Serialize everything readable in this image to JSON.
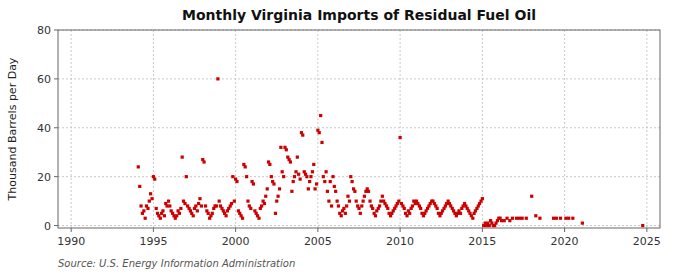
{
  "chart_data": {
    "type": "scatter",
    "title": "Monthly Virginia Imports of Residual Fuel Oil",
    "ylabel": "Thousand Barrels per Day",
    "annotations": [
      "Source: U.S. Energy Information Administration"
    ],
    "xlim": [
      1989.2,
      2025.8
    ],
    "ylim": [
      -1,
      80
    ],
    "xticks": [
      1990,
      1995,
      2000,
      2005,
      2010,
      2015,
      2020,
      2025
    ],
    "yticks": [
      0,
      20,
      40,
      60,
      80
    ],
    "color": "#cc0000",
    "marker": "square",
    "grid": true,
    "x": [
      1994.08,
      1994.17,
      1994.25,
      1994.33,
      1994.42,
      1994.5,
      1994.58,
      1994.67,
      1994.75,
      1994.83,
      1994.92,
      1995.0,
      1995.08,
      1995.17,
      1995.25,
      1995.33,
      1995.42,
      1995.5,
      1995.58,
      1995.67,
      1995.75,
      1995.83,
      1995.92,
      1996.0,
      1996.08,
      1996.17,
      1996.25,
      1996.33,
      1996.42,
      1996.5,
      1996.58,
      1996.67,
      1996.75,
      1996.83,
      1996.92,
      1997.0,
      1997.08,
      1997.17,
      1997.25,
      1997.33,
      1997.42,
      1997.5,
      1997.58,
      1997.67,
      1997.75,
      1997.83,
      1997.92,
      1998.0,
      1998.08,
      1998.17,
      1998.25,
      1998.33,
      1998.42,
      1998.5,
      1998.58,
      1998.67,
      1998.75,
      1998.83,
      1998.92,
      1999.0,
      1999.08,
      1999.17,
      1999.25,
      1999.33,
      1999.42,
      1999.5,
      1999.58,
      1999.67,
      1999.75,
      1999.83,
      1999.92,
      2000.0,
      2000.08,
      2000.17,
      2000.25,
      2000.33,
      2000.42,
      2000.5,
      2000.58,
      2000.67,
      2000.75,
      2000.83,
      2000.92,
      2001.0,
      2001.08,
      2001.17,
      2001.25,
      2001.33,
      2001.42,
      2001.5,
      2001.58,
      2001.67,
      2001.75,
      2001.83,
      2001.92,
      2002.0,
      2002.08,
      2002.17,
      2002.25,
      2002.33,
      2002.42,
      2002.5,
      2002.58,
      2002.67,
      2002.75,
      2002.83,
      2002.92,
      2003.0,
      2003.08,
      2003.17,
      2003.25,
      2003.33,
      2003.42,
      2003.5,
      2003.58,
      2003.67,
      2003.75,
      2003.83,
      2003.92,
      2004.0,
      2004.08,
      2004.17,
      2004.25,
      2004.33,
      2004.42,
      2004.5,
      2004.58,
      2004.67,
      2004.75,
      2004.83,
      2004.92,
      2005.0,
      2005.08,
      2005.17,
      2005.25,
      2005.33,
      2005.42,
      2005.5,
      2005.58,
      2005.67,
      2005.75,
      2005.83,
      2005.92,
      2006.0,
      2006.08,
      2006.17,
      2006.25,
      2006.33,
      2006.42,
      2006.5,
      2006.58,
      2006.67,
      2006.75,
      2006.83,
      2006.92,
      2007.0,
      2007.08,
      2007.17,
      2007.25,
      2007.33,
      2007.42,
      2007.5,
      2007.58,
      2007.67,
      2007.75,
      2007.83,
      2007.92,
      2008.0,
      2008.08,
      2008.17,
      2008.25,
      2008.33,
      2008.42,
      2008.5,
      2008.58,
      2008.67,
      2008.75,
      2008.83,
      2008.92,
      2009.0,
      2009.08,
      2009.17,
      2009.25,
      2009.33,
      2009.42,
      2009.5,
      2009.58,
      2009.67,
      2009.75,
      2009.83,
      2009.92,
      2010.0,
      2010.08,
      2010.17,
      2010.25,
      2010.33,
      2010.42,
      2010.5,
      2010.58,
      2010.67,
      2010.75,
      2010.83,
      2010.92,
      2011.0,
      2011.08,
      2011.17,
      2011.25,
      2011.33,
      2011.42,
      2011.5,
      2011.58,
      2011.67,
      2011.75,
      2011.83,
      2011.92,
      2012.0,
      2012.08,
      2012.17,
      2012.25,
      2012.33,
      2012.42,
      2012.5,
      2012.58,
      2012.67,
      2012.75,
      2012.83,
      2012.92,
      2013.0,
      2013.08,
      2013.17,
      2013.25,
      2013.33,
      2013.42,
      2013.5,
      2013.58,
      2013.67,
      2013.75,
      2013.83,
      2013.92,
      2014.0,
      2014.08,
      2014.17,
      2014.25,
      2014.33,
      2014.42,
      2014.5,
      2014.58,
      2014.67,
      2014.75,
      2014.83,
      2014.92,
      2015.0,
      2015.08,
      2015.17,
      2015.25,
      2015.33,
      2015.42,
      2015.5,
      2015.58,
      2015.67,
      2015.75,
      2015.83,
      2015.92,
      2016.0,
      2016.08,
      2016.17,
      2016.33,
      2016.5,
      2016.67,
      2016.83,
      2017.08,
      2017.25,
      2017.42,
      2017.67,
      2018.0,
      2018.25,
      2018.5,
      2019.33,
      2019.5,
      2019.75,
      2020.08,
      2020.25,
      2020.5,
      2021.08,
      2024.75
    ],
    "values": [
      24,
      16,
      8,
      5,
      6,
      3,
      8,
      7,
      10,
      13,
      11,
      20,
      19,
      7,
      5,
      4,
      3,
      5,
      6,
      4,
      9,
      8,
      10,
      8,
      6,
      5,
      4,
      3,
      4,
      6,
      5,
      7,
      28,
      10,
      9,
      20,
      8,
      7,
      6,
      5,
      4,
      7,
      8,
      6,
      9,
      11,
      8,
      27,
      26,
      8,
      6,
      5,
      3,
      4,
      5,
      7,
      8,
      8,
      60,
      10,
      8,
      7,
      6,
      5,
      4,
      6,
      7,
      8,
      9,
      20,
      10,
      19,
      18,
      6,
      5,
      4,
      3,
      25,
      24,
      20,
      10,
      8,
      7,
      18,
      17,
      6,
      5,
      4,
      3,
      7,
      8,
      10,
      9,
      12,
      15,
      26,
      25,
      20,
      18,
      17,
      5,
      10,
      12,
      15,
      32,
      22,
      20,
      32,
      31,
      28,
      27,
      26,
      14,
      18,
      20,
      22,
      28,
      21,
      19,
      38,
      37,
      22,
      21,
      20,
      15,
      18,
      20,
      22,
      25,
      15,
      17,
      39,
      38,
      45,
      34,
      20,
      18,
      22,
      14,
      10,
      18,
      8,
      20,
      16,
      14,
      10,
      8,
      5,
      4,
      6,
      7,
      5,
      8,
      12,
      10,
      20,
      18,
      15,
      14,
      10,
      8,
      7,
      5,
      8,
      10,
      12,
      14,
      15,
      14,
      10,
      8,
      7,
      5,
      4,
      6,
      7,
      8,
      10,
      12,
      10,
      9,
      8,
      7,
      5,
      4,
      5,
      6,
      7,
      8,
      9,
      10,
      36,
      9,
      8,
      7,
      5,
      4,
      6,
      5,
      7,
      8,
      10,
      9,
      10,
      9,
      8,
      7,
      5,
      4,
      5,
      6,
      7,
      8,
      9,
      10,
      10,
      9,
      8,
      7,
      5,
      4,
      5,
      6,
      7,
      8,
      9,
      10,
      9,
      8,
      7,
      6,
      5,
      4,
      5,
      6,
      5,
      7,
      8,
      9,
      8,
      7,
      6,
      5,
      4,
      3,
      5,
      6,
      7,
      8,
      9,
      10,
      11,
      0,
      1,
      0,
      1,
      0,
      2,
      1,
      0,
      0,
      1,
      2,
      3,
      3,
      2,
      2,
      3,
      2,
      3,
      3,
      3,
      3,
      3,
      12,
      4,
      3,
      3,
      3,
      3,
      3,
      3,
      3,
      1,
      0
    ]
  }
}
